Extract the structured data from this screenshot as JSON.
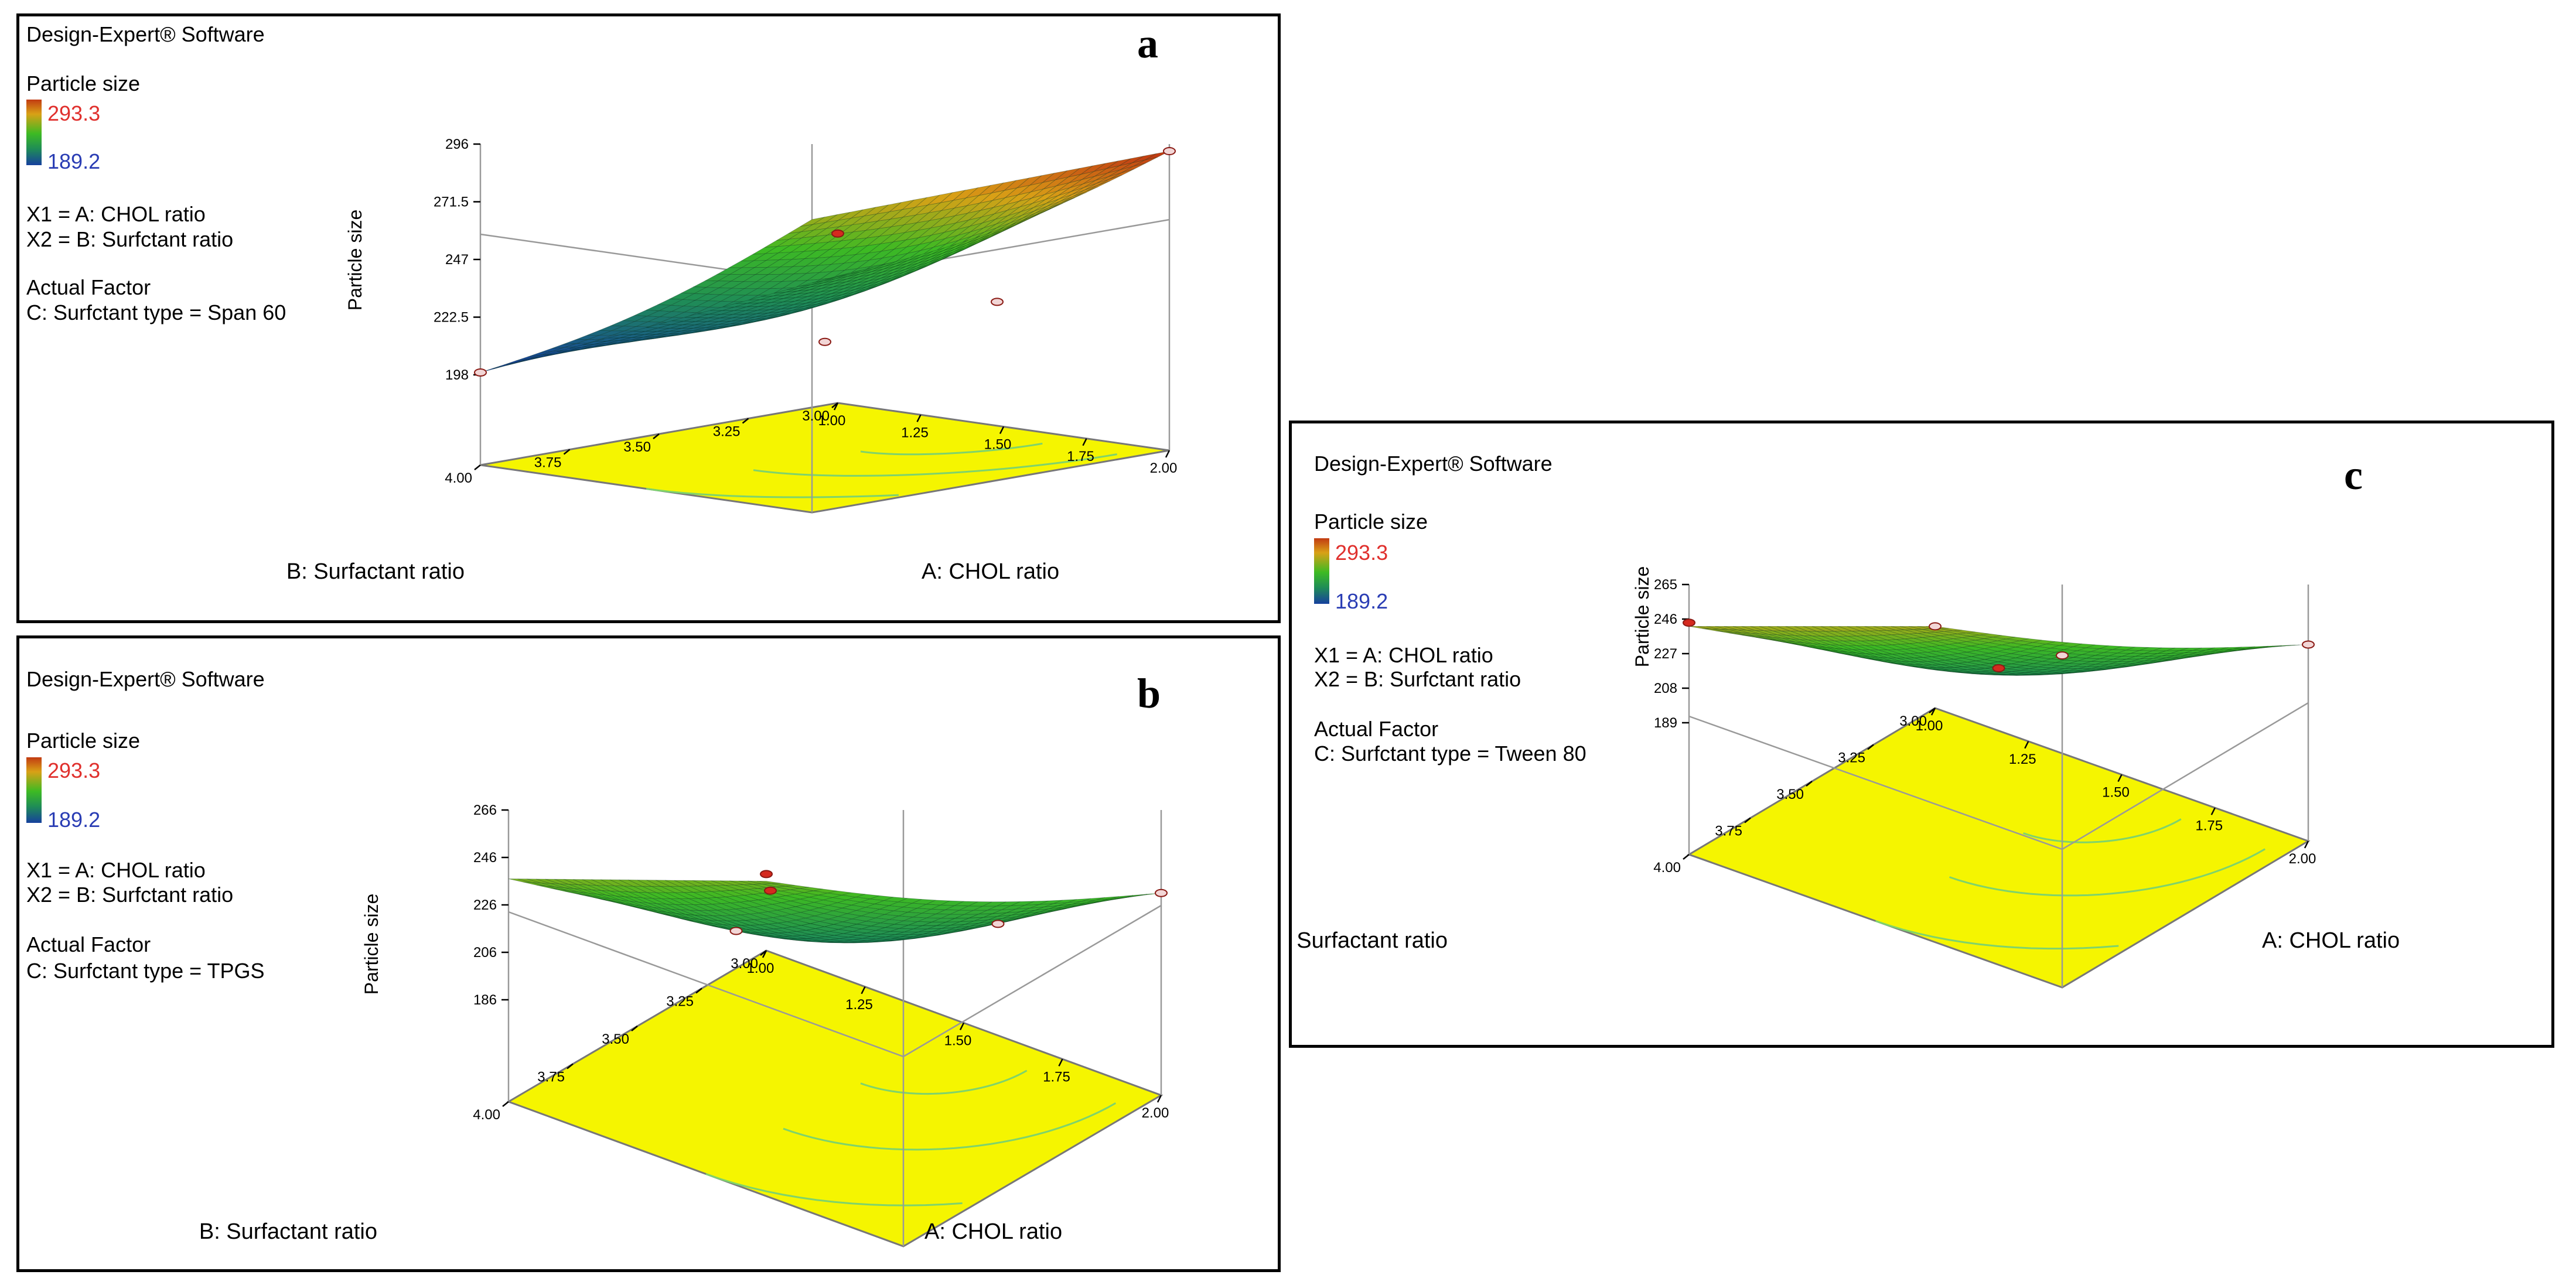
{
  "chart_data": [
    {
      "type": "surface",
      "panel_label": "a",
      "software": "Design-Expert® Software",
      "legend_title": "Particle size",
      "legend_max": "293.3",
      "legend_min": "189.2",
      "x1_def": "X1 = A: CHOL ratio",
      "x2_def": "X2 = B: Surfctant ratio",
      "actual_factor_title": "Actual Factor",
      "actual_factor_value": "C: Surfctant type = Span 60",
      "xlabel": "A: CHOL ratio",
      "ylabel": "B: Surfactant ratio",
      "zlabel": "Particle size",
      "x_ticks": [
        "1.00",
        "1.25",
        "1.50",
        "1.75",
        "2.00"
      ],
      "y_ticks": [
        "3.00",
        "3.25",
        "3.50",
        "3.75",
        "4.00"
      ],
      "z_ticks": [
        "198",
        "222.5",
        "247",
        "271.5",
        "296"
      ],
      "zlim": [
        198,
        296
      ],
      "corner_values": {
        "a_low_b_low": 240,
        "a_high_b_low": 293,
        "a_low_b_high": 199,
        "a_high_b_high": 264
      },
      "design_points": [
        {
          "a": 1.0,
          "b": 4.0,
          "value": 199
        },
        {
          "a": 2.0,
          "b": 3.0,
          "value": 293
        },
        {
          "a": 1.0,
          "b": 3.0,
          "value": 258
        },
        {
          "a": 1.5,
          "b": 3.5,
          "value": 212
        },
        {
          "a": 1.75,
          "b": 3.25,
          "value": 229
        }
      ]
    },
    {
      "type": "surface",
      "panel_label": "b",
      "software": "Design-Expert® Software",
      "legend_title": "Particle size",
      "legend_max": "293.3",
      "legend_min": "189.2",
      "x1_def": "X1 = A: CHOL ratio",
      "x2_def": "X2 = B: Surfctant ratio",
      "actual_factor_title": "Actual Factor",
      "actual_factor_value": "C: Surfctant type = TPGS",
      "xlabel": "A: CHOL ratio",
      "ylabel": "B: Surfactant ratio",
      "zlabel": "Particle size",
      "x_ticks": [
        "1.00",
        "1.25",
        "1.50",
        "1.75",
        "2.00"
      ],
      "y_ticks": [
        "3.00",
        "3.25",
        "3.50",
        "3.75",
        "4.00"
      ],
      "z_ticks": [
        "186",
        "206",
        "226",
        "246",
        "266"
      ],
      "zlim": [
        186,
        266
      ],
      "corner_values": {
        "a_low_b_low": 236,
        "a_high_b_low": 231,
        "a_low_b_high": 237,
        "a_high_b_high": 218
      },
      "design_points": [
        {
          "a": 1.0,
          "b": 3.0,
          "value": 239
        },
        {
          "a": 2.0,
          "b": 3.0,
          "value": 231
        },
        {
          "a": 1.5,
          "b": 3.75,
          "value": 232
        },
        {
          "a": 1.75,
          "b": 3.25,
          "value": 218
        },
        {
          "a": 1.25,
          "b": 3.5,
          "value": 215
        }
      ]
    },
    {
      "type": "surface",
      "panel_label": "c",
      "software": "Design-Expert® Software",
      "legend_title": "Particle size",
      "legend_max": "293.3",
      "legend_min": "189.2",
      "x1_def": "X1 = A: CHOL ratio",
      "x2_def": "X2 = B: Surfctant ratio",
      "actual_factor_title": "Actual Factor",
      "actual_factor_value": "C: Surfctant type = Tween 80",
      "xlabel": "A: CHOL ratio",
      "ylabel": "B: Surfactant ratio",
      "zlabel": "Particle size",
      "x_ticks": [
        "1.00",
        "1.25",
        "1.50",
        "1.75",
        "2.00"
      ],
      "y_ticks": [
        "3.00",
        "3.25",
        "3.50",
        "3.75",
        "4.00"
      ],
      "z_ticks": [
        "189",
        "208",
        "227",
        "246",
        "265"
      ],
      "zlim": [
        189,
        265
      ],
      "corner_values": {
        "a_low_b_low": 242,
        "a_high_b_low": 232,
        "a_low_b_high": 242,
        "a_high_b_high": 226
      },
      "design_points": [
        {
          "a": 1.0,
          "b": 3.0,
          "value": 242
        },
        {
          "a": 2.0,
          "b": 3.0,
          "value": 232
        },
        {
          "a": 1.0,
          "b": 4.0,
          "value": 244
        },
        {
          "a": 2.0,
          "b": 4.0,
          "value": 226
        },
        {
          "a": 1.5,
          "b": 3.5,
          "value": 219
        }
      ]
    }
  ]
}
